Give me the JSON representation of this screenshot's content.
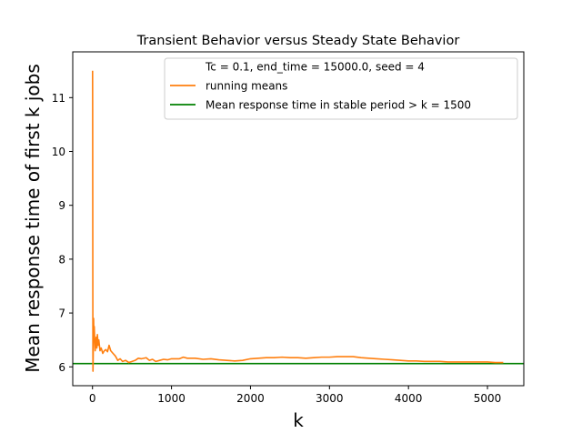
{
  "chart_data": {
    "type": "line",
    "title": "Transient Behavior versus Steady State Behavior",
    "xlabel": "k",
    "ylabel": "Mean response time of first k jobs",
    "xlim": [
      -250,
      5460
    ],
    "ylim": [
      5.65,
      11.85
    ],
    "xticks": [
      0,
      1000,
      2000,
      3000,
      4000,
      5000
    ],
    "yticks": [
      6,
      7,
      8,
      9,
      10,
      11
    ],
    "grid": false,
    "legend_position": "upper right",
    "legend_entries": [
      {
        "label": "Tc = 0.1, end_time = 15000.0, seed = 4",
        "color": "none"
      },
      {
        "label": "running means",
        "color": "#ff7f0e"
      },
      {
        "label": "Mean response time in stable period > k = 1500",
        "color": "#008000"
      }
    ],
    "series": [
      {
        "name": "running means",
        "color": "#ff7f0e",
        "points": [
          [
            1,
            11.5
          ],
          [
            2,
            10.8
          ],
          [
            3,
            9.2
          ],
          [
            4,
            7.6
          ],
          [
            5,
            6.3
          ],
          [
            6,
            5.92
          ],
          [
            8,
            6.1
          ],
          [
            10,
            6.35
          ],
          [
            14,
            6.9
          ],
          [
            18,
            6.55
          ],
          [
            22,
            6.75
          ],
          [
            28,
            6.5
          ],
          [
            34,
            6.3
          ],
          [
            40,
            6.45
          ],
          [
            48,
            6.55
          ],
          [
            55,
            6.35
          ],
          [
            62,
            6.6
          ],
          [
            70,
            6.4
          ],
          [
            80,
            6.5
          ],
          [
            95,
            6.3
          ],
          [
            110,
            6.35
          ],
          [
            130,
            6.25
          ],
          [
            150,
            6.3
          ],
          [
            170,
            6.32
          ],
          [
            190,
            6.28
          ],
          [
            210,
            6.4
          ],
          [
            230,
            6.3
          ],
          [
            260,
            6.25
          ],
          [
            290,
            6.2
          ],
          [
            320,
            6.12
          ],
          [
            350,
            6.15
          ],
          [
            380,
            6.1
          ],
          [
            420,
            6.12
          ],
          [
            460,
            6.08
          ],
          [
            500,
            6.1
          ],
          [
            540,
            6.12
          ],
          [
            580,
            6.16
          ],
          [
            620,
            6.15
          ],
          [
            680,
            6.17
          ],
          [
            720,
            6.12
          ],
          [
            760,
            6.14
          ],
          [
            800,
            6.1
          ],
          [
            850,
            6.12
          ],
          [
            900,
            6.14
          ],
          [
            950,
            6.13
          ],
          [
            1000,
            6.15
          ],
          [
            1100,
            6.15
          ],
          [
            1150,
            6.18
          ],
          [
            1200,
            6.16
          ],
          [
            1300,
            6.16
          ],
          [
            1400,
            6.14
          ],
          [
            1500,
            6.15
          ],
          [
            1600,
            6.13
          ],
          [
            1700,
            6.12
          ],
          [
            1800,
            6.11
          ],
          [
            1900,
            6.12
          ],
          [
            2000,
            6.15
          ],
          [
            2100,
            6.16
          ],
          [
            2200,
            6.17
          ],
          [
            2300,
            6.17
          ],
          [
            2400,
            6.18
          ],
          [
            2500,
            6.17
          ],
          [
            2600,
            6.17
          ],
          [
            2700,
            6.16
          ],
          [
            2800,
            6.17
          ],
          [
            2900,
            6.18
          ],
          [
            3000,
            6.18
          ],
          [
            3100,
            6.19
          ],
          [
            3200,
            6.19
          ],
          [
            3300,
            6.19
          ],
          [
            3400,
            6.17
          ],
          [
            3500,
            6.16
          ],
          [
            3600,
            6.15
          ],
          [
            3700,
            6.14
          ],
          [
            3800,
            6.13
          ],
          [
            3900,
            6.12
          ],
          [
            4000,
            6.11
          ],
          [
            4100,
            6.11
          ],
          [
            4200,
            6.1
          ],
          [
            4300,
            6.1
          ],
          [
            4400,
            6.1
          ],
          [
            4500,
            6.09
          ],
          [
            4600,
            6.09
          ],
          [
            4700,
            6.09
          ],
          [
            4800,
            6.09
          ],
          [
            4900,
            6.09
          ],
          [
            5000,
            6.09
          ],
          [
            5100,
            6.08
          ],
          [
            5200,
            6.08
          ]
        ]
      },
      {
        "name": "Mean response time in stable period > k = 1500",
        "color": "#008000",
        "type": "hline",
        "y": 6.06
      }
    ]
  }
}
